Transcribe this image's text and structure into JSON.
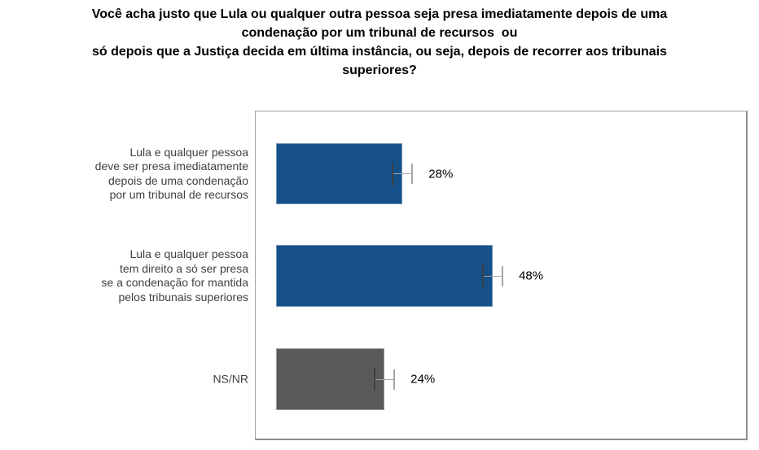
{
  "chart_data": {
    "type": "bar",
    "orientation": "horizontal",
    "title": "Você acha justo que Lula ou qualquer outra pessoa seja presa imediatamente depois de uma condenação por um tribunal de recursos  ou só depois que a Justiça decida em última instância, ou seja, depois de recorrer aos tribunais superiores?",
    "title_lines": [
      "Você acha justo que Lula ou qualquer outra pessoa seja presa imediatamente depois de uma",
      "condenação por um tribunal de recursos  ou",
      "só depois que a Justiça decida em última instância, ou seja, depois de recorrer aos tribunais",
      "superiores?"
    ],
    "categories": [
      {
        "label": "Lula e qualquer pessoa deve ser presa imediatamente depois de uma condenação por um tribunal de recursos",
        "label_lines": [
          "Lula e qualquer pessoa",
          "deve ser presa imediatamente",
          "depois de uma condenação",
          "por um tribunal de recursos"
        ],
        "value": 28,
        "value_label": "28%",
        "color": "#155089"
      },
      {
        "label": "Lula e qualquer pessoa tem direito a só ser presa se a condenação for mantida pelos tribunais superiores",
        "label_lines": [
          "Lula e qualquer pessoa",
          "tem direito a só ser presa",
          "se a condenação for mantida",
          "pelos tribunais superiores"
        ],
        "value": 48,
        "value_label": "48%",
        "color": "#155089"
      },
      {
        "label": "NS/NR",
        "label_lines": [
          "NS/NR"
        ],
        "value": 24,
        "value_label": "24%",
        "color": "#595959"
      }
    ],
    "margin_of_error_pct": 2.2,
    "value_suffix": "%",
    "xlim": [
      0,
      100
    ],
    "grid": false,
    "legend": false,
    "colors": {
      "bar_blue": "#155089",
      "bar_gray": "#595959",
      "error_dark": "#404040",
      "error_light": "#a6a6a6",
      "plot_border": "#9e9e9e",
      "category_text": "#404040",
      "value_text": "#000000",
      "title_text": "#000000"
    }
  }
}
